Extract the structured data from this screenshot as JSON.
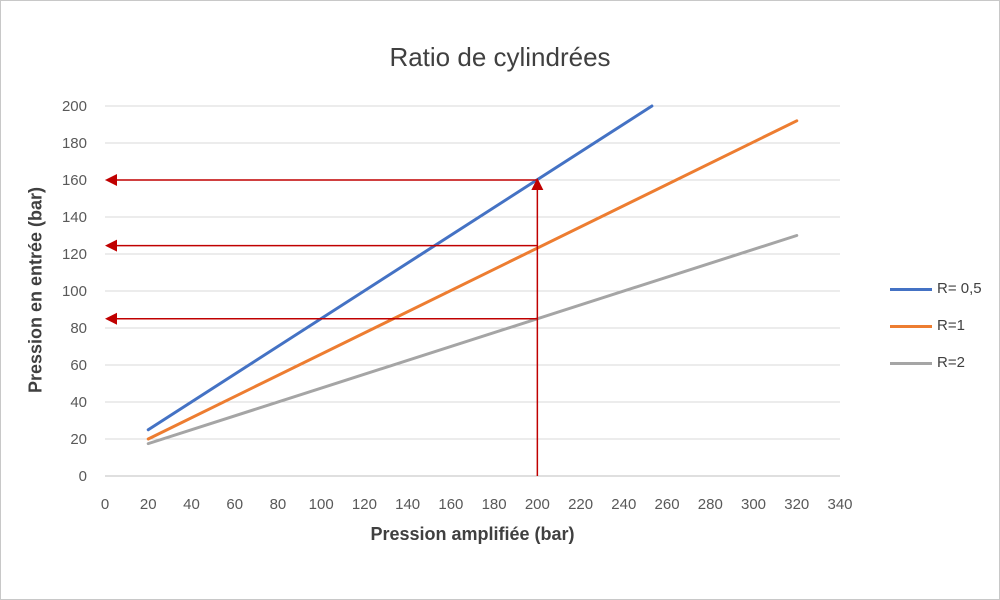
{
  "chart_data": {
    "type": "line",
    "title": "Ratio de cylindrées",
    "xlabel": "Pression amplifiée (bar)",
    "ylabel": "Pression en entrée (bar)",
    "xlim": [
      0,
      340
    ],
    "ylim": [
      0,
      200
    ],
    "xticks": [
      "0",
      "20",
      "40",
      "60",
      "80",
      "100",
      "120",
      "140",
      "160",
      "180",
      "200",
      "220",
      "240",
      "260",
      "280",
      "300",
      "320",
      "340"
    ],
    "yticks": [
      "0",
      "20",
      "40",
      "60",
      "80",
      "100",
      "120",
      "140",
      "160",
      "180",
      "200"
    ],
    "grid": "horizontal",
    "legend_position": "right",
    "series": [
      {
        "name": "R= 0,5",
        "color": "#4472C4",
        "x": [
          20,
          253
        ],
        "y": [
          25,
          200
        ]
      },
      {
        "name": "R=1",
        "color": "#ED7D31",
        "x": [
          20,
          320
        ],
        "y": [
          20,
          192
        ]
      },
      {
        "name": "R=2",
        "color": "#A5A5A5",
        "x": [
          20,
          320
        ],
        "y": [
          17.5,
          130
        ]
      }
    ],
    "annotations": {
      "color": "#C00000",
      "vertical_arrow": {
        "x": 200,
        "y_from": 0,
        "y_to": 160
      },
      "horizontal_arrows": [
        {
          "y": 160,
          "x_from": 200,
          "x_to": 0
        },
        {
          "y": 124.5,
          "x_from": 200,
          "x_to": 0
        },
        {
          "y": 85,
          "x_from": 200,
          "x_to": 0
        }
      ]
    }
  }
}
